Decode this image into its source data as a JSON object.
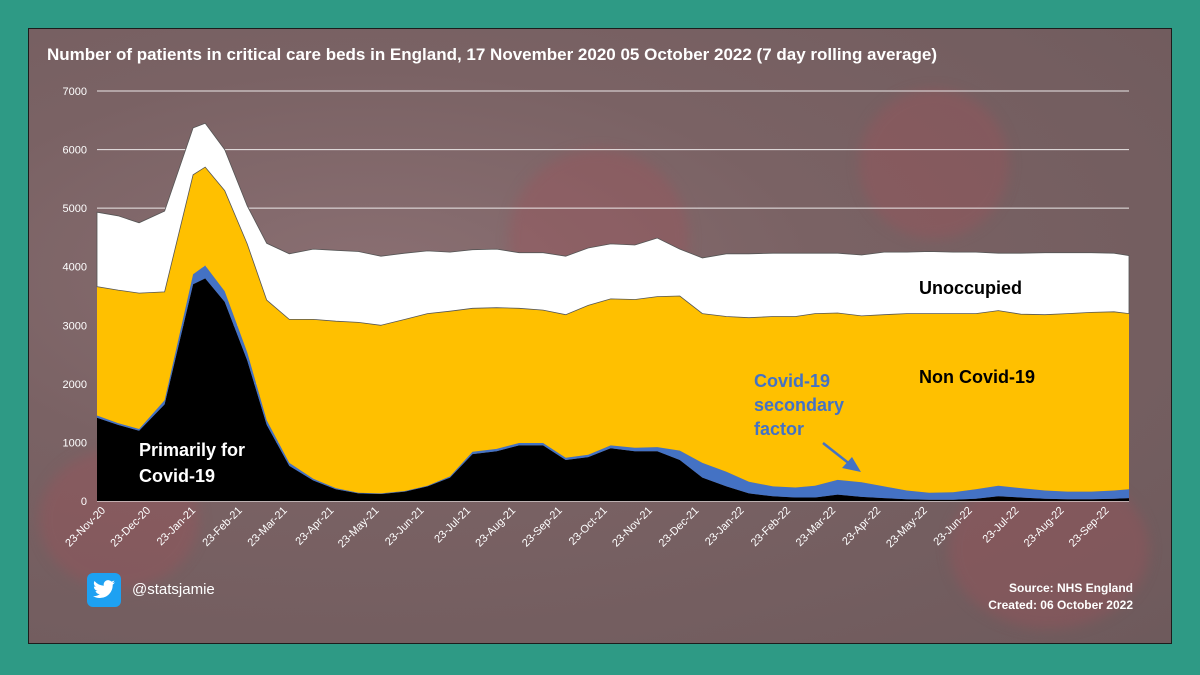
{
  "title": "Number of patients in critical care beds in England, 17 November 2020 05 October 2022 (7 day rolling  average)",
  "twitter_handle": "@statsjamie",
  "source": "Source: NHS England",
  "created": "Created: 06 October 2022",
  "colors": {
    "background": "#2e9a85",
    "unoccupied": "#ffffff",
    "non_covid": "#ffc000",
    "secondary": "#4472c4",
    "primary": "#000000",
    "secondary_label": "#4472c4",
    "twitter": "#1da1f2"
  },
  "icons": [
    "twitter-icon"
  ],
  "chart_data": {
    "type": "area",
    "stacked": true,
    "y_ticks": [
      "0",
      "1000",
      "2000",
      "3000",
      "4000",
      "5000",
      "6000",
      "7000"
    ],
    "ylim": [
      0,
      7000
    ],
    "grid": "horizontal",
    "x_ticks": [
      "23-Nov-20",
      "23-Dec-20",
      "23-Jan-21",
      "23-Feb-21",
      "23-Mar-21",
      "23-Apr-21",
      "23-May-21",
      "23-Jun-21",
      "23-Jul-21",
      "23-Aug-21",
      "23-Sep-21",
      "23-Oct-21",
      "23-Nov-21",
      "23-Dec-21",
      "23-Jan-22",
      "23-Feb-22",
      "23-Mar-22",
      "23-Apr-22",
      "23-May-22",
      "23-Jun-22",
      "23-Jul-22",
      "23-Aug-22",
      "23-Sep-22"
    ],
    "x": [
      "2020-11-17",
      "2020-12-01",
      "2020-12-15",
      "2021-01-01",
      "2021-01-20",
      "2021-01-28",
      "2021-02-10",
      "2021-02-25",
      "2021-03-10",
      "2021-03-25",
      "2021-04-10",
      "2021-04-25",
      "2021-05-10",
      "2021-05-25",
      "2021-06-10",
      "2021-06-25",
      "2021-07-10",
      "2021-07-25",
      "2021-08-10",
      "2021-08-25",
      "2021-09-10",
      "2021-09-25",
      "2021-10-10",
      "2021-10-25",
      "2021-11-10",
      "2021-11-25",
      "2021-12-10",
      "2021-12-25",
      "2022-01-10",
      "2022-01-25",
      "2022-02-10",
      "2022-02-25",
      "2022-03-10",
      "2022-03-25",
      "2022-04-10",
      "2022-04-25",
      "2022-05-10",
      "2022-05-25",
      "2022-06-10",
      "2022-06-25",
      "2022-07-10",
      "2022-07-25",
      "2022-08-10",
      "2022-08-25",
      "2022-09-10",
      "2022-09-25",
      "2022-10-05"
    ],
    "series": [
      {
        "name": "Primarily for Covid-19",
        "values": [
          1420,
          1300,
          1200,
          1650,
          3700,
          3800,
          3400,
          2400,
          1300,
          600,
          350,
          200,
          130,
          120,
          160,
          250,
          400,
          800,
          850,
          950,
          950,
          700,
          750,
          900,
          850,
          850,
          700,
          400,
          250,
          130,
          80,
          60,
          60,
          110,
          70,
          50,
          30,
          20,
          20,
          40,
          80,
          60,
          40,
          30,
          30,
          40,
          50
        ]
      },
      {
        "name": "Covid-19 secondary factor",
        "values": [
          40,
          30,
          30,
          70,
          170,
          220,
          180,
          140,
          80,
          50,
          30,
          20,
          10,
          10,
          10,
          10,
          20,
          40,
          40,
          40,
          40,
          40,
          40,
          50,
          60,
          70,
          160,
          250,
          250,
          200,
          170,
          170,
          200,
          250,
          250,
          200,
          150,
          120,
          130,
          160,
          180,
          160,
          140,
          130,
          130,
          140,
          150
        ]
      },
      {
        "name": "Non Covid-19",
        "values": [
          2200,
          2270,
          2320,
          1850,
          1700,
          1680,
          1720,
          1850,
          2050,
          2450,
          2720,
          2850,
          2910,
          2870,
          2930,
          2940,
          2820,
          2450,
          2410,
          2300,
          2270,
          2440,
          2550,
          2500,
          2530,
          2570,
          2640,
          2550,
          2650,
          2800,
          2900,
          2920,
          2940,
          2850,
          2840,
          2930,
          3020,
          3060,
          3050,
          3000,
          2990,
          2970,
          3000,
          3040,
          3060,
          3050,
          3000
        ]
      },
      {
        "name": "Unoccupied",
        "values": [
          1270,
          1270,
          1200,
          1380,
          800,
          750,
          700,
          650,
          970,
          1120,
          1200,
          1210,
          1210,
          1180,
          1130,
          1070,
          1010,
          1000,
          1000,
          950,
          980,
          1000,
          980,
          940,
          930,
          1000,
          800,
          950,
          1070,
          1090,
          1080,
          1080,
          1030,
          1020,
          1040,
          1070,
          1050,
          1060,
          1050,
          1050,
          980,
          1040,
          1060,
          1040,
          1020,
          1000,
          990
        ]
      }
    ],
    "annotations": [
      "Unoccupied",
      "Non Covid-19",
      "Covid-19 secondary factor",
      "Primarily for Covid-19"
    ]
  }
}
